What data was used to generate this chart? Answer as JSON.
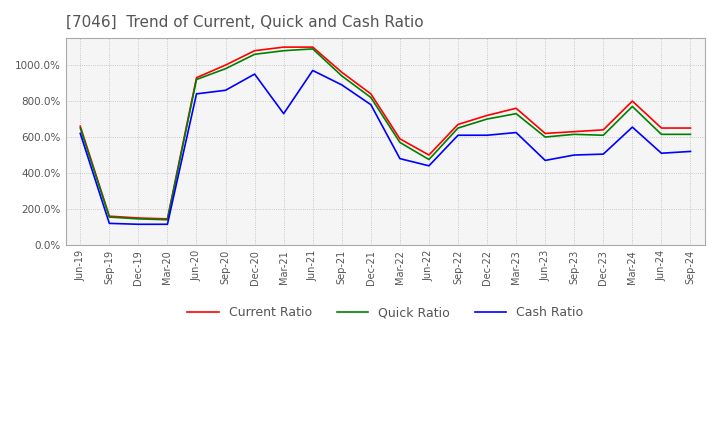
{
  "title": "[7046]  Trend of Current, Quick and Cash Ratio",
  "title_fontsize": 11,
  "title_color": "#555555",
  "x_labels": [
    "Jun-19",
    "Sep-19",
    "Dec-19",
    "Mar-20",
    "Jun-20",
    "Sep-20",
    "Dec-20",
    "Mar-21",
    "Jun-21",
    "Sep-21",
    "Dec-21",
    "Mar-22",
    "Jun-22",
    "Sep-22",
    "Dec-22",
    "Mar-23",
    "Jun-23",
    "Sep-23",
    "Dec-23",
    "Mar-24",
    "Jun-24",
    "Sep-24"
  ],
  "current_ratio": [
    660,
    160,
    150,
    145,
    930,
    1000,
    1080,
    1100,
    1100,
    960,
    840,
    590,
    500,
    670,
    720,
    760,
    620,
    630,
    640,
    800,
    650,
    650
  ],
  "quick_ratio": [
    650,
    155,
    145,
    140,
    920,
    980,
    1060,
    1080,
    1090,
    940,
    820,
    570,
    475,
    650,
    700,
    730,
    600,
    615,
    610,
    770,
    615,
    615
  ],
  "cash_ratio": [
    620,
    120,
    115,
    115,
    840,
    860,
    950,
    730,
    970,
    890,
    780,
    480,
    440,
    610,
    610,
    625,
    470,
    500,
    505,
    655,
    510,
    520
  ],
  "current_color": "#ff0000",
  "quick_color": "#008000",
  "cash_color": "#0000ff",
  "ylim": [
    0,
    1150
  ],
  "ytick_values": [
    0,
    200,
    400,
    600,
    800,
    1000
  ],
  "background_color": "#ffffff",
  "plot_bg_color": "#f5f5f5",
  "grid_color": "#aaaaaa",
  "legend_labels": [
    "Current Ratio",
    "Quick Ratio",
    "Cash Ratio"
  ]
}
